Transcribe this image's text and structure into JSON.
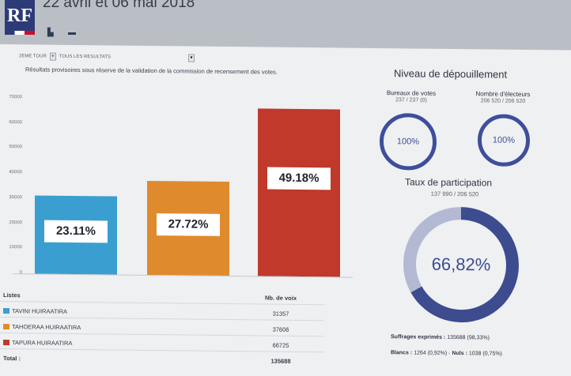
{
  "header": {
    "logo_text": "RF",
    "dates": "22 avril et 06 mai 2018",
    "icons": [
      "chart-icon",
      "table-icon"
    ]
  },
  "filters": {
    "round": "2EME TOUR",
    "results": "TOUS LES RESULTATS"
  },
  "note": "Résultats provisoires sous réserve de la validation de la commission de recensement des votes.",
  "chart_data": {
    "type": "bar",
    "categories": [
      "TAVINI HUIRAATIRA",
      "TAHOERAA HUIRAATIRA",
      "TAPURA HUIRAATIRA"
    ],
    "values": [
      31357,
      37606,
      66725
    ],
    "value_labels": [
      "23.11%",
      "27.72%",
      "49.18%"
    ],
    "colors": [
      "#3a9fd0",
      "#e08a2e",
      "#c0392b"
    ],
    "ylim": [
      0,
      70000
    ],
    "yticks": [
      "70000",
      "60000",
      "50000",
      "40000",
      "30000",
      "20000",
      "10000",
      "0"
    ],
    "title": "",
    "xlabel": "",
    "ylabel": ""
  },
  "table": {
    "col_listes": "Listes",
    "col_voix": "Nb. de voix",
    "rows": [
      {
        "name": "TAVINI HUIRAATIRA",
        "votes": "31357",
        "color": "#3a9fd0"
      },
      {
        "name": "TAHOERAA HUIRAATIRA",
        "votes": "37606",
        "color": "#e08a2e"
      },
      {
        "name": "TAPURA HUIRAATIRA",
        "votes": "66725",
        "color": "#c0392b"
      }
    ],
    "total_label": "Total :",
    "total_value": "135688"
  },
  "depouillement": {
    "title": "Niveau de dépouillement",
    "bureaux_label": "Bureaux de votes",
    "bureaux_value": "237 / 237 (0)",
    "bureaux_pct": "100%",
    "electeurs_label": "Nombre d'électeurs",
    "electeurs_value": "206 520 / 206 520",
    "electeurs_pct": "100%"
  },
  "participation": {
    "title": "Taux de participation",
    "value": "137 990 / 206 520",
    "pct": "66,82%",
    "fraction": 0.6682
  },
  "summary": {
    "suffrages_label": "Suffrages exprimés :",
    "suffrages_value": "135688 (98,33%)",
    "blancs_label": "Blancs :",
    "blancs_value": "1264 (0,92%)",
    "nuls_label": "Nuls :",
    "nuls_value": "1038 (0,75%)"
  }
}
